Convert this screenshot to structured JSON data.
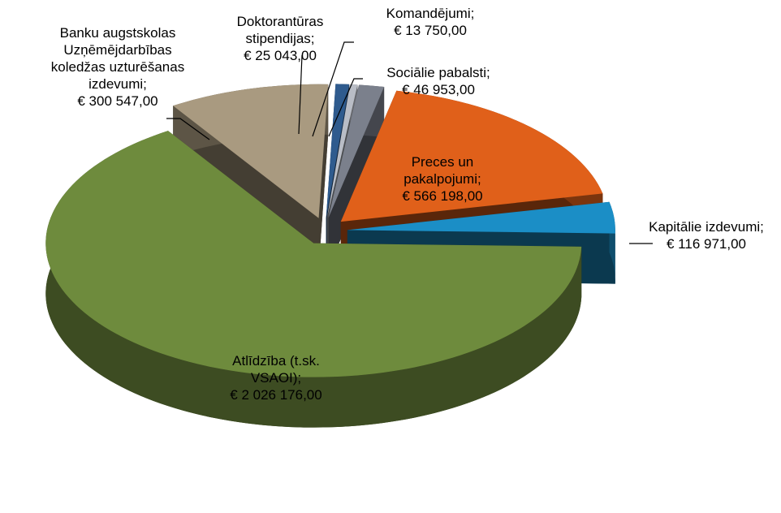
{
  "chart_data": {
    "type": "pie3d",
    "categories": [
      "Preces un\npakalpojumi;",
      "Kapitālie izdevumi;",
      "Atlīdzība (t.sk.\nVSAOI);",
      "Banku augstskolas\nUzņēmējdarbības\nkoledžas uzturēšanas\nizdevumi;",
      "Doktorantūras\nstipendijas;",
      "Komandējumi;",
      "Sociālie pabalsti;"
    ],
    "values": [
      566198,
      116971,
      2026176,
      300547,
      25043,
      13750,
      46953
    ],
    "value_labels": [
      "€ 566 198,00",
      "€ 116 971,00",
      "€ 2 026 176,00",
      "€ 300 547,00",
      "€ 25 043,00",
      "€ 13 750,00",
      "€ 46 953,00"
    ],
    "colors": [
      "#e0601a",
      "#1b8ec6",
      "#6e8b3d",
      "#a99a80",
      "#2f5b8e",
      "#b9bdc6",
      "#7b808c"
    ]
  }
}
